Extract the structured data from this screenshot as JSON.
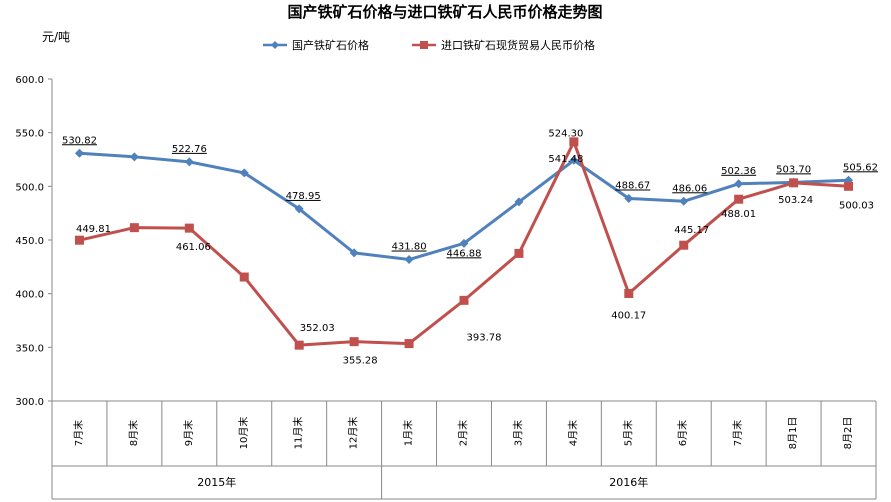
{
  "chart_data": {
    "type": "line",
    "title": "国产铁矿石价格与进口铁矿石人民币价格走势图",
    "ylabel": "元/吨",
    "ylim": [
      300,
      600
    ],
    "yticks": [
      "300.0",
      "350.0",
      "400.0",
      "450.0",
      "500.0",
      "550.0",
      "600.0"
    ],
    "categories": [
      "7月末",
      "8月末",
      "9月末",
      "10月末",
      "11月末",
      "12月末",
      "1月末",
      "2月末",
      "3月末",
      "4月末",
      "5月末",
      "6月末",
      "7月末",
      "8月1日",
      "8月2日"
    ],
    "year_groups": [
      {
        "label": "2015年",
        "start": 0,
        "end": 5
      },
      {
        "label": "2016年",
        "start": 6,
        "end": 14
      }
    ],
    "legend_position": "top-center",
    "series": [
      {
        "name": "国产铁矿石价格",
        "color": "#4F81BD",
        "marker": "diamond",
        "values": [
          530.82,
          527.5,
          522.76,
          512.5,
          478.95,
          438.0,
          431.8,
          446.88,
          485.5,
          524.3,
          488.67,
          486.06,
          502.36,
          503.7,
          505.62
        ],
        "labels": [
          "530.82",
          "",
          "522.76",
          "",
          "478.95",
          "",
          "431.80",
          "446.88",
          "",
          "524.30",
          "488.67",
          "486.06",
          "502.36",
          "503.70",
          "505.62"
        ]
      },
      {
        "name": "进口铁矿石现货贸易人民币价格",
        "color": "#C0504D",
        "marker": "square",
        "values": [
          449.81,
          461.5,
          461.06,
          415.5,
          352.03,
          355.28,
          353.5,
          393.78,
          437.5,
          541.48,
          400.17,
          445.17,
          488.01,
          503.24,
          500.03
        ],
        "labels": [
          "449.81",
          "",
          "461.06",
          "",
          "352.03",
          "355.28",
          "",
          "393.78",
          "",
          "541.48",
          "400.17",
          "445.17",
          "488.01",
          "503.24",
          "500.03"
        ]
      }
    ]
  }
}
